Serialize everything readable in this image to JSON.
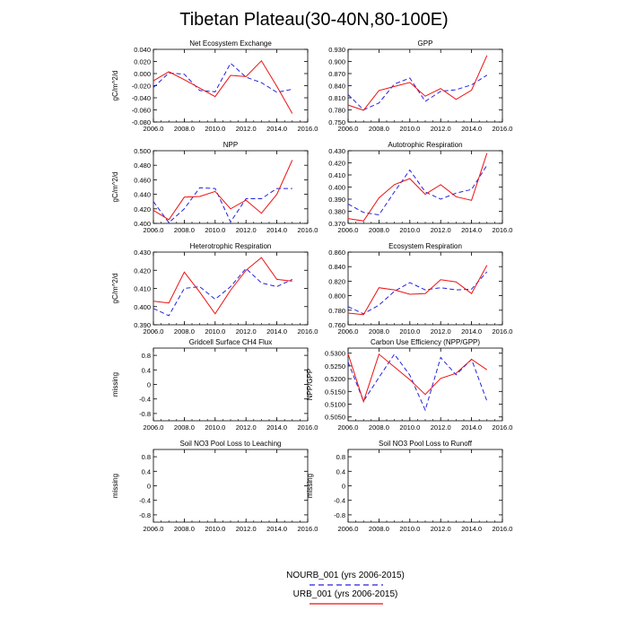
{
  "title": "Tibetan Plateau(30-40N,80-100E)",
  "colors": {
    "nourb": "#2222dd",
    "urb": "#ee1111"
  },
  "legend": {
    "entries": [
      {
        "label": "NOURB_001 (yrs 2006-2015)",
        "style": "dashed",
        "color": "#2222dd"
      },
      {
        "label": "URB_001 (yrs 2006-2015)",
        "style": "solid",
        "color": "#ee1111"
      }
    ]
  },
  "chart_data": [
    {
      "type": "line",
      "title": "Net Ecosystem Exchange",
      "ylabel": "gC/m^2/d",
      "xlim": [
        2006,
        2016
      ],
      "ylim": [
        -0.08,
        0.04
      ],
      "xticks": [
        "2006.0",
        "2008.0",
        "2010.0",
        "2012.0",
        "2014.0",
        "2016.0"
      ],
      "yticks": [
        "-0.080",
        "-0.060",
        "-0.040",
        "-0.020",
        "0.000",
        "0.020",
        "0.040"
      ],
      "x": [
        2006,
        2007,
        2008,
        2009,
        2010,
        2011,
        2012,
        2013,
        2014,
        2015
      ],
      "series": [
        {
          "name": "NOURB_001 (yrs 2006-2015)",
          "style": "dashed",
          "values": [
            -0.023,
            0.001,
            -0.001,
            -0.028,
            -0.03,
            0.017,
            -0.006,
            -0.015,
            -0.031,
            -0.026
          ]
        },
        {
          "name": "URB_001 (yrs 2006-2015)",
          "style": "solid",
          "values": [
            -0.012,
            0.003,
            -0.01,
            -0.024,
            -0.038,
            -0.003,
            -0.005,
            0.021,
            -0.021,
            -0.066
          ]
        }
      ]
    },
    {
      "type": "line",
      "title": "GPP",
      "ylabel": "",
      "xlim": [
        2006,
        2016
      ],
      "ylim": [
        0.75,
        0.93
      ],
      "xticks": [
        "2006.0",
        "2008.0",
        "2010.0",
        "2012.0",
        "2014.0",
        "2016.0"
      ],
      "yticks": [
        "0.750",
        "0.780",
        "0.810",
        "0.840",
        "0.870",
        "0.900",
        "0.930"
      ],
      "x": [
        2006,
        2007,
        2008,
        2009,
        2010,
        2011,
        2012,
        2013,
        2014,
        2015
      ],
      "series": [
        {
          "name": "NOURB_001 (yrs 2006-2015)",
          "style": "dashed",
          "values": [
            0.818,
            0.78,
            0.797,
            0.844,
            0.859,
            0.801,
            0.826,
            0.83,
            0.842,
            0.866
          ]
        },
        {
          "name": "URB_001 (yrs 2006-2015)",
          "style": "solid",
          "values": [
            0.792,
            0.779,
            0.828,
            0.838,
            0.848,
            0.814,
            0.833,
            0.806,
            0.829,
            0.915
          ]
        }
      ]
    },
    {
      "type": "line",
      "title": "NPP",
      "ylabel": "gC/m^2/d",
      "xlim": [
        2006,
        2016
      ],
      "ylim": [
        0.4,
        0.5
      ],
      "xticks": [
        "2006.0",
        "2008.0",
        "2010.0",
        "2012.0",
        "2014.0",
        "2016.0"
      ],
      "yticks": [
        "0.400",
        "0.420",
        "0.440",
        "0.460",
        "0.480",
        "0.500"
      ],
      "x": [
        2006,
        2007,
        2008,
        2009,
        2010,
        2011,
        2012,
        2013,
        2014,
        2015
      ],
      "series": [
        {
          "name": "NOURB_001 (yrs 2006-2015)",
          "style": "dashed",
          "values": [
            0.43,
            0.401,
            0.42,
            0.449,
            0.448,
            0.402,
            0.434,
            0.434,
            0.448,
            0.448
          ]
        },
        {
          "name": "URB_001 (yrs 2006-2015)",
          "style": "solid",
          "values": [
            0.418,
            0.405,
            0.436,
            0.437,
            0.444,
            0.42,
            0.432,
            0.414,
            0.44,
            0.487
          ]
        }
      ]
    },
    {
      "type": "line",
      "title": "Autotrophic Respiration",
      "ylabel": "",
      "xlim": [
        2006,
        2016
      ],
      "ylim": [
        0.37,
        0.43
      ],
      "xticks": [
        "2006.0",
        "2008.0",
        "2010.0",
        "2012.0",
        "2014.0",
        "2016.0"
      ],
      "yticks": [
        "0.370",
        "0.380",
        "0.390",
        "0.400",
        "0.410",
        "0.420",
        "0.430"
      ],
      "x": [
        2006,
        2007,
        2008,
        2009,
        2010,
        2011,
        2012,
        2013,
        2014,
        2015
      ],
      "series": [
        {
          "name": "NOURB_001 (yrs 2006-2015)",
          "style": "dashed",
          "values": [
            0.386,
            0.379,
            0.377,
            0.396,
            0.414,
            0.396,
            0.39,
            0.395,
            0.398,
            0.418
          ]
        },
        {
          "name": "URB_001 (yrs 2006-2015)",
          "style": "solid",
          "values": [
            0.374,
            0.372,
            0.391,
            0.402,
            0.407,
            0.394,
            0.402,
            0.392,
            0.389,
            0.428
          ]
        }
      ]
    },
    {
      "type": "line",
      "title": "Heterotrophic Respiration",
      "ylabel": "gC/m^2/d",
      "xlim": [
        2006,
        2016
      ],
      "ylim": [
        0.39,
        0.43
      ],
      "xticks": [
        "2006.0",
        "2008.0",
        "2010.0",
        "2012.0",
        "2014.0",
        "2016.0"
      ],
      "yticks": [
        "0.390",
        "0.400",
        "0.410",
        "0.420",
        "0.430"
      ],
      "x": [
        2006,
        2007,
        2008,
        2009,
        2010,
        2011,
        2012,
        2013,
        2014,
        2015
      ],
      "series": [
        {
          "name": "NOURB_001 (yrs 2006-2015)",
          "style": "dashed",
          "values": [
            0.399,
            0.395,
            0.41,
            0.411,
            0.404,
            0.411,
            0.421,
            0.413,
            0.411,
            0.415
          ]
        },
        {
          "name": "URB_001 (yrs 2006-2015)",
          "style": "solid",
          "values": [
            0.403,
            0.402,
            0.419,
            0.408,
            0.396,
            0.409,
            0.42,
            0.427,
            0.415,
            0.414
          ]
        }
      ]
    },
    {
      "type": "line",
      "title": "Ecosystem Respiration",
      "ylabel": "",
      "xlim": [
        2006,
        2016
      ],
      "ylim": [
        0.76,
        0.86
      ],
      "xticks": [
        "2006.0",
        "2008.0",
        "2010.0",
        "2012.0",
        "2014.0",
        "2016.0"
      ],
      "yticks": [
        "0.760",
        "0.780",
        "0.800",
        "0.820",
        "0.840",
        "0.860"
      ],
      "x": [
        2006,
        2007,
        2008,
        2009,
        2010,
        2011,
        2012,
        2013,
        2014,
        2015
      ],
      "series": [
        {
          "name": "NOURB_001 (yrs 2006-2015)",
          "style": "dashed",
          "values": [
            0.785,
            0.775,
            0.787,
            0.806,
            0.818,
            0.808,
            0.811,
            0.808,
            0.809,
            0.833
          ]
        },
        {
          "name": "URB_001 (yrs 2006-2015)",
          "style": "solid",
          "values": [
            0.776,
            0.774,
            0.811,
            0.808,
            0.802,
            0.803,
            0.822,
            0.819,
            0.803,
            0.842
          ]
        }
      ]
    },
    {
      "type": "line",
      "title": "Gridcell Surface CH4 Flux",
      "ylabel": "missing",
      "xlim": [
        2006,
        2016
      ],
      "ylim": [
        -1.0,
        1.0
      ],
      "xticks": [
        "2006.0",
        "2008.0",
        "2010.0",
        "2012.0",
        "2014.0",
        "2016.0"
      ],
      "yticks": [
        "-0.8",
        "-0.4",
        "0",
        "0.4",
        "0.8"
      ],
      "x": [],
      "series": []
    },
    {
      "type": "line",
      "title": "Carbon Use Efficiency (NPP/GPP)",
      "ylabel": "NPP/GPP",
      "xlim": [
        2006,
        2016
      ],
      "ylim": [
        0.5035,
        0.532
      ],
      "xticks": [
        "2006.0",
        "2008.0",
        "2010.0",
        "2012.0",
        "2014.0",
        "2016.0"
      ],
      "yticks": [
        "0.5050",
        "0.5100",
        "0.5150",
        "0.5200",
        "0.5250",
        "0.5300"
      ],
      "x": [
        2006,
        2007,
        2008,
        2009,
        2010,
        2011,
        2012,
        2013,
        2014,
        2015
      ],
      "series": [
        {
          "name": "NOURB_001 (yrs 2006-2015)",
          "style": "dashed",
          "values": [
            0.5265,
            0.5112,
            0.5205,
            0.5296,
            0.5214,
            0.5077,
            0.5283,
            0.5215,
            0.5276,
            0.5112
          ]
        },
        {
          "name": "URB_001 (yrs 2006-2015)",
          "style": "solid",
          "values": [
            0.5297,
            0.511,
            0.5296,
            0.5246,
            0.5196,
            0.5138,
            0.5201,
            0.5221,
            0.5276,
            0.5235
          ]
        }
      ]
    },
    {
      "type": "line",
      "title": "Soil NO3 Pool Loss to Leaching",
      "ylabel": "missing",
      "xlim": [
        2006,
        2016
      ],
      "ylim": [
        -1.0,
        1.0
      ],
      "xticks": [
        "2006.0",
        "2008.0",
        "2010.0",
        "2012.0",
        "2014.0",
        "2016.0"
      ],
      "yticks": [
        "-0.8",
        "-0.4",
        "0",
        "0.4",
        "0.8"
      ],
      "x": [],
      "series": []
    },
    {
      "type": "line",
      "title": "Soil NO3 Pool Loss to Runoff",
      "ylabel": "missing",
      "xlim": [
        2006,
        2016
      ],
      "ylim": [
        -1.0,
        1.0
      ],
      "xticks": [
        "2006.0",
        "2008.0",
        "2010.0",
        "2012.0",
        "2014.0",
        "2016.0"
      ],
      "yticks": [
        "-0.8",
        "-0.4",
        "0",
        "0.4",
        "0.8"
      ],
      "x": [],
      "series": []
    }
  ]
}
